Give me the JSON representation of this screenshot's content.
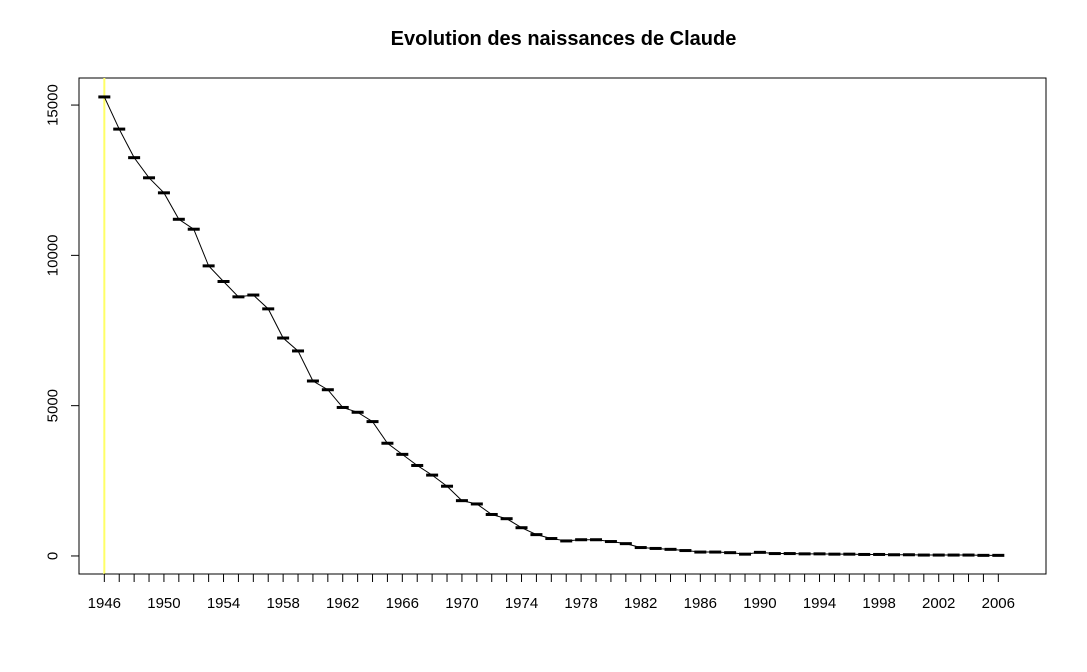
{
  "chart_data": {
    "type": "line",
    "title": "Evolution des naissances de Claude",
    "xlabel": "",
    "ylabel": "",
    "x": [
      1946,
      1947,
      1948,
      1949,
      1950,
      1951,
      1952,
      1953,
      1954,
      1955,
      1956,
      1957,
      1958,
      1959,
      1960,
      1961,
      1962,
      1963,
      1964,
      1965,
      1966,
      1967,
      1968,
      1969,
      1970,
      1971,
      1972,
      1973,
      1974,
      1975,
      1976,
      1977,
      1978,
      1979,
      1980,
      1981,
      1982,
      1983,
      1984,
      1985,
      1986,
      1987,
      1988,
      1989,
      1990,
      1991,
      1992,
      1993,
      1994,
      1995,
      1996,
      1997,
      1998,
      1999,
      2000,
      2001,
      2002,
      2003,
      2004,
      2005,
      2006
    ],
    "series": [
      {
        "values": [
          15270,
          14200,
          13250,
          12580,
          12080,
          11200,
          10870,
          9650,
          9130,
          8620,
          8680,
          8220,
          7250,
          6820,
          5820,
          5530,
          4940,
          4780,
          4470,
          3750,
          3380,
          3010,
          2690,
          2320,
          1840,
          1730,
          1380,
          1240,
          940,
          710,
          580,
          500,
          540,
          540,
          480,
          410,
          280,
          250,
          220,
          180,
          130,
          130,
          110,
          60,
          120,
          80,
          80,
          70,
          70,
          60,
          60,
          50,
          50,
          40,
          40,
          30,
          30,
          30,
          30,
          20,
          20
        ]
      }
    ],
    "xlim": [
      1944.3,
      2009.2
    ],
    "ylim": [
      -600,
      15900
    ],
    "x_ticks": [
      "1946",
      "1950",
      "1954",
      "1958",
      "1962",
      "1966",
      "1970",
      "1974",
      "1978",
      "1982",
      "1986",
      "1990",
      "1994",
      "1998",
      "2002",
      "2006"
    ],
    "y_ticks": [
      "0",
      "5000",
      "10000",
      "15000"
    ],
    "highlight_x": 1946,
    "colors": {
      "line": "#000000",
      "highlight": "#ffff66",
      "frame": "#000000"
    },
    "grid": false,
    "legend": "none"
  }
}
